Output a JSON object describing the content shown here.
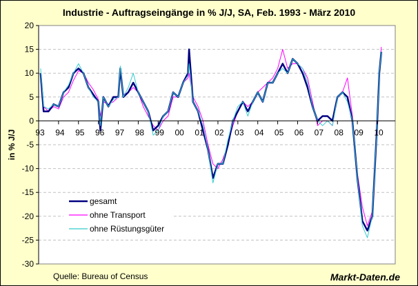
{
  "chart_data": {
    "type": "line",
    "title": "Industrie - Auftragseingänge in % J/J, SA, Feb. 1993 - März 2010",
    "xlabel": "",
    "ylabel": "in % J/J",
    "ylim": [
      -30,
      20
    ],
    "xlim": [
      1993,
      2010.9
    ],
    "yticks": [
      20,
      15,
      10,
      5,
      0,
      -5,
      -10,
      -15,
      -20,
      -25,
      -30
    ],
    "xticks": [
      {
        "v": 1993,
        "label": "93"
      },
      {
        "v": 1994,
        "label": "94"
      },
      {
        "v": 1995,
        "label": "95"
      },
      {
        "v": 1996,
        "label": "96"
      },
      {
        "v": 1997,
        "label": "97"
      },
      {
        "v": 1998,
        "label": "98"
      },
      {
        "v": 1999,
        "label": "99"
      },
      {
        "v": 2000,
        "label": "00"
      },
      {
        "v": 2001,
        "label": "01"
      },
      {
        "v": 2002,
        "label": "02"
      },
      {
        "v": 2003,
        "label": "03"
      },
      {
        "v": 2004,
        "label": "04"
      },
      {
        "v": 2005,
        "label": "05"
      },
      {
        "v": 2006,
        "label": "06"
      },
      {
        "v": 2007,
        "label": "07"
      },
      {
        "v": 2008,
        "label": "08"
      },
      {
        "v": 2009,
        "label": "09"
      },
      {
        "v": 2010,
        "label": "10"
      }
    ],
    "grid": "horizontal dashed",
    "legend_placement": "bottom-left",
    "x": [
      1993.1,
      1993.25,
      1993.5,
      1993.75,
      1994,
      1994.25,
      1994.5,
      1994.75,
      1995,
      1995.25,
      1995.5,
      1995.75,
      1996,
      1996.1,
      1996.25,
      1996.5,
      1996.75,
      1997,
      1997.1,
      1997.25,
      1997.5,
      1997.75,
      1998,
      1998.25,
      1998.5,
      1998.75,
      1999,
      1999.25,
      1999.5,
      1999.75,
      2000,
      2000.25,
      2000.5,
      2000.55,
      2000.75,
      2001,
      2001.25,
      2001.5,
      2001.75,
      2002,
      2002.25,
      2002.5,
      2002.75,
      2003,
      2003.25,
      2003.5,
      2003.75,
      2004,
      2004.25,
      2004.5,
      2004.75,
      2005,
      2005.25,
      2005.5,
      2005.75,
      2006,
      2006.25,
      2006.5,
      2006.75,
      2007,
      2007.25,
      2007.5,
      2007.75,
      2008,
      2008.25,
      2008.5,
      2008.75,
      2009,
      2009.25,
      2009.5,
      2009.75,
      2010,
      2010.1,
      2010.2
    ],
    "series": [
      {
        "name": "ohne Transport",
        "color": "#FF00FF",
        "width": 1,
        "values": [
          9,
          3,
          2,
          3,
          2.5,
          5,
          6,
          8.5,
          10.5,
          10,
          8,
          6.5,
          4.5,
          1,
          4,
          3.5,
          4,
          5,
          10,
          5.5,
          6,
          7,
          6,
          3,
          1,
          -1,
          -2,
          0,
          1,
          5,
          5,
          8,
          9,
          10,
          5,
          3,
          0,
          -5,
          -9,
          -10,
          -8,
          -5,
          -1,
          2,
          4,
          3,
          4,
          6,
          7,
          8,
          9,
          11,
          15,
          11,
          12,
          12,
          11,
          9,
          4,
          -1,
          0,
          0,
          -1,
          5,
          6,
          9,
          1,
          -11,
          -18,
          -22,
          -19,
          0,
          10,
          15.5
        ]
      },
      {
        "name": "gesamt",
        "color": "#000080",
        "width": 2.5,
        "values": [
          10,
          2,
          2,
          3.5,
          3,
          6,
          7,
          10,
          11,
          10,
          7,
          5.5,
          4,
          -2,
          5,
          3,
          5,
          5,
          11,
          5,
          6,
          8,
          6,
          4,
          2,
          -2,
          -1,
          1,
          2,
          6,
          5,
          8,
          10,
          15,
          4,
          2,
          -2,
          -6,
          -12,
          -9,
          -9,
          -5,
          0,
          2,
          4,
          2,
          4,
          6,
          4,
          8,
          8,
          10,
          12,
          10,
          13,
          12,
          10,
          7,
          3,
          0,
          1,
          1,
          0,
          5,
          6,
          5,
          0,
          -12,
          -21,
          -23,
          -20,
          0,
          10,
          14.5
        ]
      },
      {
        "name": "ohne Rüstungsgüter",
        "color": "#33CCCC",
        "width": 1,
        "values": [
          11,
          3,
          2.5,
          3.5,
          3,
          6,
          7.5,
          10,
          12,
          10,
          7,
          5,
          4,
          -1,
          5,
          3,
          4.5,
          5,
          11.5,
          5,
          7,
          10,
          6,
          4,
          2,
          -3,
          -2,
          1,
          2,
          6,
          5,
          8,
          9.5,
          12,
          4,
          2,
          -1,
          -6,
          -13,
          -9,
          -9,
          -4,
          0,
          3,
          4,
          1,
          4,
          6,
          4,
          8,
          8,
          10,
          11,
          10,
          13,
          12,
          11,
          8,
          3,
          0,
          -1,
          0,
          -1,
          5,
          6,
          4,
          0,
          -12,
          -22,
          -24.5,
          -20,
          0,
          10,
          14.5
        ]
      }
    ],
    "legend": [
      {
        "name": "gesamt",
        "color": "#000080"
      },
      {
        "name": "ohne Transport",
        "color": "#FF00FF"
      },
      {
        "name": "ohne Rüstungsgüter",
        "color": "#33CCCC"
      }
    ]
  },
  "footer": {
    "source": "Quelle: Bureau of Census",
    "brand": "Markt-Daten.de"
  },
  "colors": {
    "background": "#FFFFCC",
    "plot": "#FFFFFF",
    "grid": "#C0C0C0"
  }
}
